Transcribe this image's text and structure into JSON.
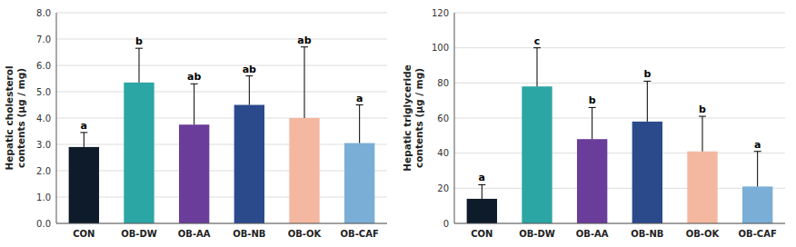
{
  "chart_data": [
    {
      "type": "bar",
      "categories": [
        "CON",
        "OB-DW",
        "OB-AA",
        "OB-NB",
        "OB-OK",
        "OB-CAF"
      ],
      "values": [
        2.9,
        5.35,
        3.75,
        4.5,
        4.0,
        3.05
      ],
      "errors": [
        0.55,
        1.3,
        1.55,
        1.1,
        2.7,
        1.45
      ],
      "annotations": [
        "a",
        "b",
        "ab",
        "ab",
        "ab",
        "a"
      ],
      "colors": [
        "#0d1b2a",
        "#2ca6a4",
        "#6a3d9a",
        "#2b4a8b",
        "#f4b8a0",
        "#7aaed6"
      ],
      "y_label": "Hepatic cholesterol\ncontents (μg / mg)",
      "ylim": [
        0,
        8.0
      ],
      "yticks": [
        {
          "value": 0.0,
          "label": "0.0"
        },
        {
          "value": 1.0,
          "label": "1.0"
        },
        {
          "value": 2.0,
          "label": "2.0"
        },
        {
          "value": 3.0,
          "label": "3.0"
        },
        {
          "value": 4.0,
          "label": "4.0"
        },
        {
          "value": 5.0,
          "label": "5.0"
        },
        {
          "value": 6.0,
          "label": "6.0"
        },
        {
          "value": 7.0,
          "label": "7.0"
        },
        {
          "value": 8.0,
          "label": "8.0"
        }
      ],
      "grid": true
    },
    {
      "type": "bar",
      "categories": [
        "CON",
        "OB-DW",
        "OB-AA",
        "OB-NB",
        "OB-OK",
        "OB-CAF"
      ],
      "values": [
        14.0,
        78.0,
        48.0,
        58.0,
        41.0,
        21.0
      ],
      "errors": [
        8.0,
        22.0,
        18.0,
        23.0,
        20.0,
        20.0
      ],
      "annotations": [
        "a",
        "c",
        "b",
        "b",
        "b",
        "a"
      ],
      "colors": [
        "#0d1b2a",
        "#2ca6a4",
        "#6a3d9a",
        "#2b4a8b",
        "#f4b8a0",
        "#7aaed6"
      ],
      "y_label": "Hepatic triglyceride\ncontents (μg / mg)",
      "ylim": [
        0,
        120
      ],
      "yticks": [
        0,
        20,
        40,
        60,
        80,
        100,
        120
      ],
      "grid": true
    }
  ]
}
